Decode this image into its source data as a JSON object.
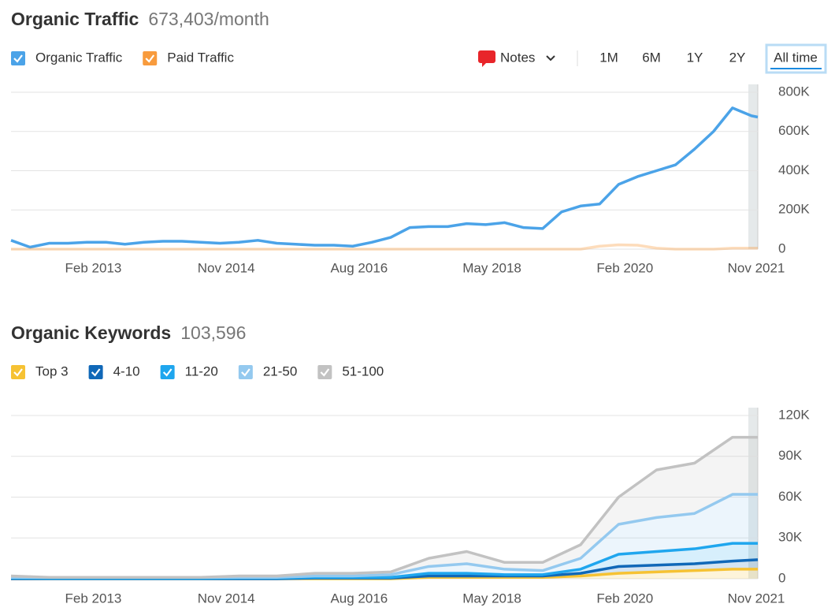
{
  "controls": {
    "notes": "Notes",
    "ranges": [
      "1M",
      "6M",
      "1Y",
      "2Y",
      "All time"
    ],
    "selected": 4
  },
  "chart_data": [
    {
      "type": "line",
      "title": "Organic Traffic",
      "subtitle": "673,403/month",
      "x": [
        "2012-01",
        "2012-04",
        "2012-07",
        "2012-10",
        "2013-01",
        "2013-04",
        "2013-07",
        "2013-10",
        "2014-01",
        "2014-04",
        "2014-07",
        "2014-10",
        "2015-01",
        "2015-04",
        "2015-07",
        "2015-10",
        "2016-01",
        "2016-04",
        "2016-07",
        "2016-10",
        "2017-01",
        "2017-04",
        "2017-07",
        "2017-10",
        "2018-01",
        "2018-04",
        "2018-07",
        "2018-10",
        "2019-01",
        "2019-04",
        "2019-07",
        "2019-10",
        "2020-01",
        "2020-04",
        "2020-07",
        "2020-10",
        "2021-01",
        "2021-04",
        "2021-07",
        "2021-10",
        "2021-11"
      ],
      "series": [
        {
          "name": "Organic Traffic",
          "color": "#4ba3e8",
          "values": [
            45000,
            10000,
            30000,
            30000,
            35000,
            35000,
            25000,
            35000,
            40000,
            40000,
            35000,
            30000,
            35000,
            45000,
            30000,
            25000,
            20000,
            20000,
            15000,
            35000,
            60000,
            110000,
            115000,
            115000,
            130000,
            125000,
            135000,
            110000,
            105000,
            190000,
            220000,
            230000,
            330000,
            370000,
            400000,
            430000,
            510000,
            600000,
            720000,
            680000,
            673403
          ]
        },
        {
          "name": "Paid Traffic",
          "color": "#f89b3d",
          "values": [
            0,
            0,
            0,
            0,
            0,
            0,
            0,
            0,
            0,
            0,
            0,
            0,
            0,
            0,
            0,
            0,
            0,
            0,
            0,
            0,
            0,
            0,
            0,
            0,
            0,
            0,
            0,
            0,
            0,
            0,
            0,
            15000,
            22000,
            20000,
            5000,
            0,
            0,
            0,
            5000,
            5000,
            5000
          ]
        }
      ],
      "xlim": [
        "2012-01",
        "2021-11"
      ],
      "xticks": [
        {
          "value": "2013-02",
          "label": "Feb 2013"
        },
        {
          "value": "2014-11",
          "label": "Nov 2014"
        },
        {
          "value": "2016-08",
          "label": "Aug 2016"
        },
        {
          "value": "2018-05",
          "label": "May 2018"
        },
        {
          "value": "2020-02",
          "label": "Feb 2020"
        },
        {
          "value": "2021-11",
          "label": "Nov 2021"
        }
      ],
      "ylim": [
        0,
        800000
      ],
      "yticks": [
        0,
        {
          "value": 200000,
          "label": "200K"
        },
        {
          "value": 400000,
          "label": "400K"
        },
        {
          "value": 600000,
          "label": "600K"
        },
        {
          "value": 800000,
          "label": "800K"
        }
      ],
      "grid": true
    },
    {
      "type": "area",
      "stacked": true,
      "title": "Organic Keywords",
      "subtitle": "103,596",
      "x": [
        "2012-01",
        "2012-07",
        "2013-01",
        "2013-07",
        "2014-01",
        "2014-07",
        "2015-01",
        "2015-07",
        "2016-01",
        "2016-07",
        "2017-01",
        "2017-07",
        "2018-01",
        "2018-07",
        "2019-01",
        "2019-07",
        "2020-01",
        "2020-07",
        "2021-01",
        "2021-07",
        "2021-11"
      ],
      "series": [
        {
          "name": "Top 3",
          "color": "#f6c233",
          "values": [
            0,
            0,
            0,
            0,
            0,
            0,
            0,
            0,
            0,
            0,
            0,
            1000,
            1000,
            1000,
            1000,
            2000,
            4000,
            5000,
            6000,
            7000,
            7000
          ]
        },
        {
          "name": "4-10",
          "color": "#1068b8",
          "values": [
            0,
            0,
            0,
            0,
            0,
            0,
            0,
            0,
            500,
            500,
            500,
            1000,
            1000,
            1000,
            1000,
            2000,
            5000,
            5000,
            5000,
            6000,
            7000
          ]
        },
        {
          "name": "11-20",
          "color": "#1fa6ee",
          "values": [
            500,
            300,
            300,
            300,
            300,
            300,
            500,
            500,
            500,
            500,
            500,
            2000,
            2000,
            1000,
            1000,
            3000,
            9000,
            10000,
            11000,
            13000,
            12000
          ]
        },
        {
          "name": "21-50",
          "color": "#94c9ef",
          "values": [
            500,
            700,
            700,
            700,
            700,
            700,
            500,
            500,
            1000,
            1000,
            2000,
            5000,
            7000,
            4000,
            3000,
            8000,
            22000,
            25000,
            26000,
            36000,
            36000
          ]
        },
        {
          "name": "51-100",
          "color": "#c2c2c2",
          "values": [
            1000,
            0,
            0,
            0,
            0,
            0,
            1000,
            1000,
            2000,
            2000,
            2000,
            6000,
            9000,
            5000,
            6000,
            10000,
            20000,
            35000,
            37000,
            42000,
            42000
          ]
        }
      ],
      "xlim": [
        "2012-01",
        "2021-11"
      ],
      "xticks": [
        {
          "value": "2013-02",
          "label": "Feb 2013"
        },
        {
          "value": "2014-11",
          "label": "Nov 2014"
        },
        {
          "value": "2016-08",
          "label": "Aug 2016"
        },
        {
          "value": "2018-05",
          "label": "May 2018"
        },
        {
          "value": "2020-02",
          "label": "Feb 2020"
        },
        {
          "value": "2021-11",
          "label": "Nov 2021"
        }
      ],
      "ylim": [
        0,
        120000
      ],
      "yticks": [
        0,
        {
          "value": 30000,
          "label": "30K"
        },
        {
          "value": 60000,
          "label": "60K"
        },
        {
          "value": 90000,
          "label": "90K"
        },
        {
          "value": 120000,
          "label": "120K"
        }
      ],
      "grid": true
    }
  ]
}
